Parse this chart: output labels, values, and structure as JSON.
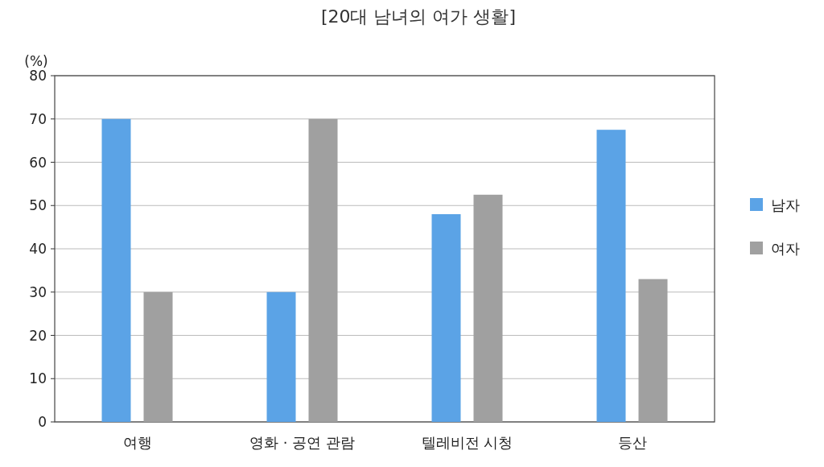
{
  "chart_data": {
    "type": "bar",
    "title": "[20대 남녀의 여가 생활]",
    "ylabel": "(%)",
    "categories": [
      "여행",
      "영화 · 공연 관람",
      "텔레비전 시청",
      "등산"
    ],
    "series": [
      {
        "name": "남자",
        "color": "#5ba3e6",
        "values": [
          70,
          30,
          48,
          67.5
        ]
      },
      {
        "name": "여자",
        "color": "#a0a0a0",
        "values": [
          30,
          70,
          52.5,
          33
        ]
      }
    ],
    "ylim": [
      0,
      80
    ],
    "yticks": [
      0,
      10,
      20,
      30,
      40,
      50,
      60,
      70,
      80
    ],
    "grid": "y",
    "legend": "right"
  }
}
